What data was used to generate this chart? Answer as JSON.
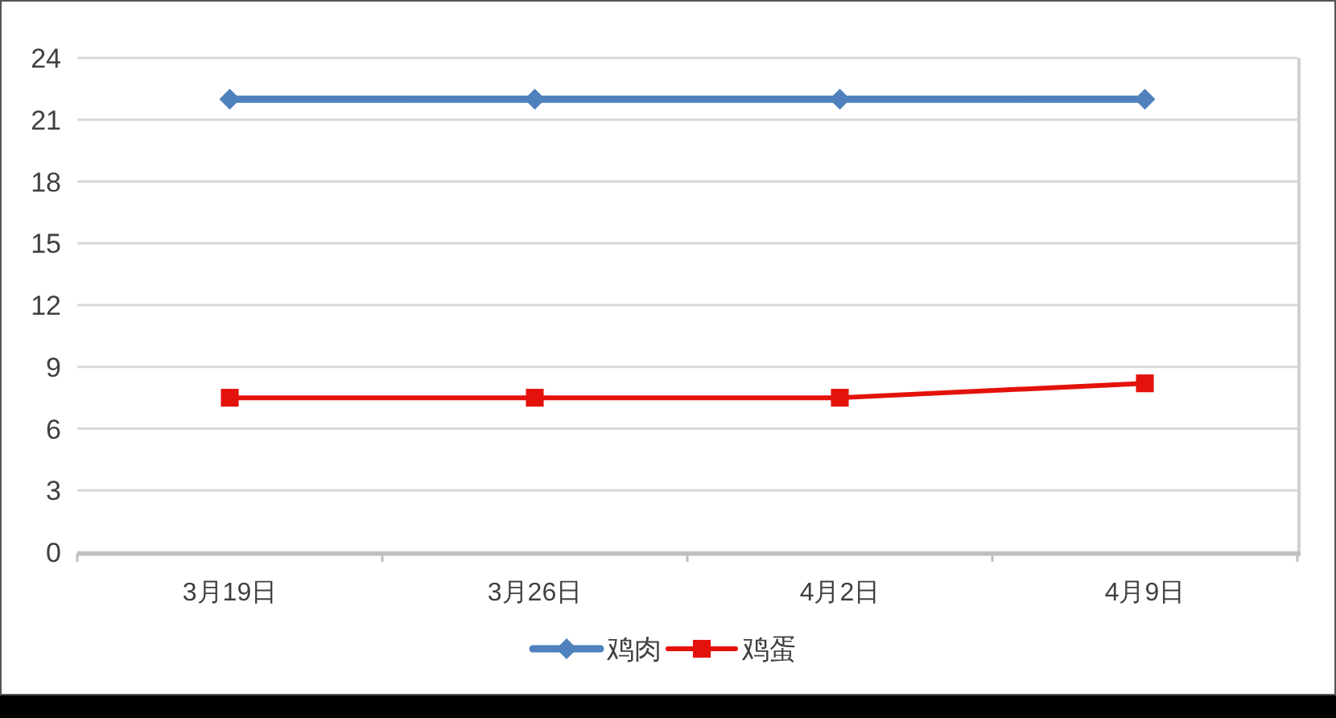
{
  "chart_data": {
    "type": "line",
    "categories": [
      "3月19日",
      "3月26日",
      "4月2日",
      "4月9日"
    ],
    "series": [
      {
        "name": "鸡肉",
        "color": "#4f81bd",
        "marker": "diamond",
        "values": [
          22,
          22,
          22,
          22
        ]
      },
      {
        "name": "鸡蛋",
        "color": "#e3120b",
        "marker": "square",
        "values": [
          7.5,
          7.5,
          7.5,
          8.2
        ]
      }
    ],
    "ylim": [
      0,
      24
    ],
    "yticks": [
      0,
      3,
      6,
      9,
      12,
      15,
      18,
      21,
      24
    ],
    "grid": "y",
    "legend": "bottom"
  }
}
